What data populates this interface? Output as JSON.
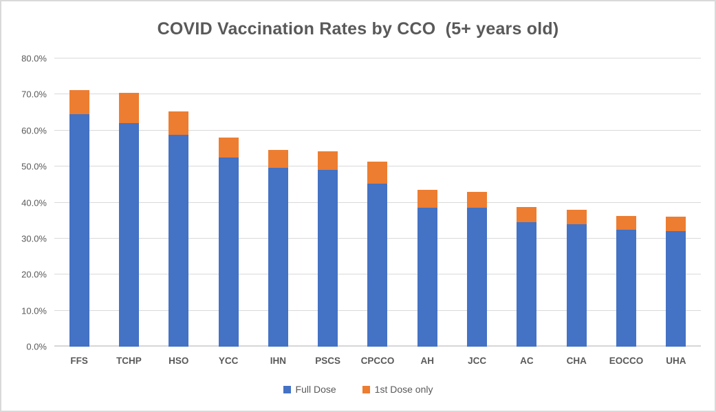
{
  "chart_data": {
    "type": "bar",
    "stacked": true,
    "title": "COVID Vaccination Rates by CCO  (5+ years old)",
    "categories": [
      "FFS",
      "TCHP",
      "HSO",
      "YCC",
      "IHN",
      "PSCS",
      "CPCCO",
      "AH",
      "JCC",
      "AC",
      "CHA",
      "EOCCO",
      "UHA"
    ],
    "series": [
      {
        "name": "Full Dose",
        "color": "#4472C4",
        "values": [
          64.5,
          62.1,
          58.8,
          52.5,
          49.7,
          49.0,
          45.3,
          38.6,
          38.6,
          34.6,
          34.0,
          32.4,
          32.1
        ]
      },
      {
        "name": "1st Dose only",
        "color": "#ED7D31",
        "values": [
          6.8,
          8.4,
          6.5,
          5.6,
          4.9,
          5.2,
          6.0,
          4.9,
          4.3,
          4.1,
          4.0,
          3.9,
          4.0
        ]
      }
    ],
    "totals": [
      71.3,
      70.5,
      65.3,
      58.1,
      54.6,
      54.2,
      51.3,
      43.5,
      42.9,
      38.7,
      38.0,
      36.3,
      36.1
    ],
    "xlabel": "",
    "ylabel": "",
    "ylim": [
      0,
      80
    ],
    "yticks": [
      {
        "value": 0,
        "label": "0.0%"
      },
      {
        "value": 10,
        "label": "10.0%"
      },
      {
        "value": 20,
        "label": "20.0%"
      },
      {
        "value": 30,
        "label": "30.0%"
      },
      {
        "value": 40,
        "label": "40.0%"
      },
      {
        "value": 50,
        "label": "50.0%"
      },
      {
        "value": 60,
        "label": "60.0%"
      },
      {
        "value": 70,
        "label": "70.0%"
      },
      {
        "value": 80,
        "label": "80.0%"
      }
    ],
    "grid": true,
    "legend_position": "bottom",
    "colors": {
      "text": "#595959",
      "gridline": "#D9D9D9",
      "background": "#FFFFFF",
      "border": "#D9D9D9"
    }
  }
}
